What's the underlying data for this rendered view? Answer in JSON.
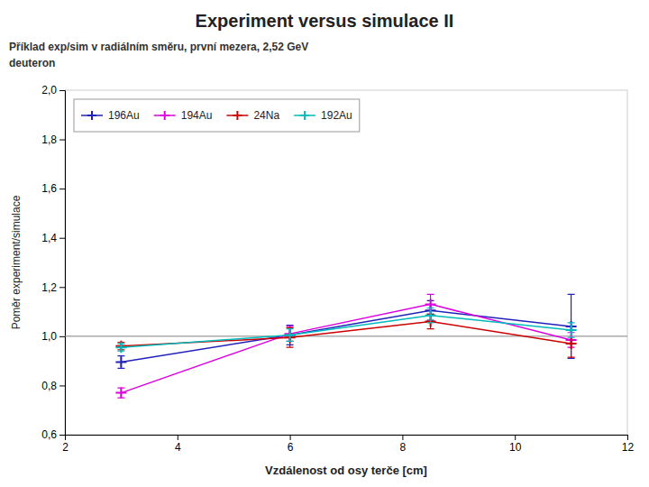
{
  "chart_data": {
    "type": "line",
    "title": "Experiment versus simulace II",
    "subtitle": [
      "Příklad exp/sim v radiálním směru, první mezera, 2,52 GeV",
      "deuteron"
    ],
    "x_label": "Vzdálenost od osy terče [cm]",
    "y_label": "Poměr experiment/simulace",
    "x": [
      3,
      6,
      8.5,
      11
    ],
    "xlim": [
      2,
      12
    ],
    "xticks": [
      2,
      4,
      6,
      8,
      10,
      12
    ],
    "ylim": [
      0.6,
      2.0
    ],
    "yticks": [
      {
        "value": 0.6,
        "label": "0,6"
      },
      {
        "value": 0.8,
        "label": "0,8"
      },
      {
        "value": 1.0,
        "label": "1,0"
      },
      {
        "value": 1.2,
        "label": "1,2"
      },
      {
        "value": 1.4,
        "label": "1,4"
      },
      {
        "value": 1.6,
        "label": "1,6"
      },
      {
        "value": 1.8,
        "label": "1,8"
      },
      {
        "value": 2.0,
        "label": "2,0"
      }
    ],
    "reference_line": 1.0,
    "grid": false,
    "legend": "upper left",
    "series": [
      {
        "name": "196Au",
        "color": "#2222bb",
        "marker": "plus",
        "values": [
          0.895,
          1.005,
          1.105,
          1.04
        ],
        "errors": [
          0.025,
          0.04,
          0.04,
          0.13
        ]
      },
      {
        "name": "194Au",
        "color": "#dd00dd",
        "marker": "plus",
        "values": [
          0.77,
          1.01,
          1.13,
          0.985
        ],
        "errors": [
          0.02,
          0.03,
          0.04,
          0.03
        ]
      },
      {
        "name": "24Na",
        "color": "#cc0000",
        "marker": "plus",
        "values": [
          0.96,
          0.995,
          1.06,
          0.97
        ],
        "errors": [
          0.015,
          0.04,
          0.03,
          0.055
        ]
      },
      {
        "name": "192Au",
        "color": "#00bbbb",
        "marker": "plus",
        "values": [
          0.955,
          1.005,
          1.085,
          1.025
        ],
        "errors": [
          0.015,
          0.025,
          0.03,
          0.03
        ]
      }
    ]
  }
}
